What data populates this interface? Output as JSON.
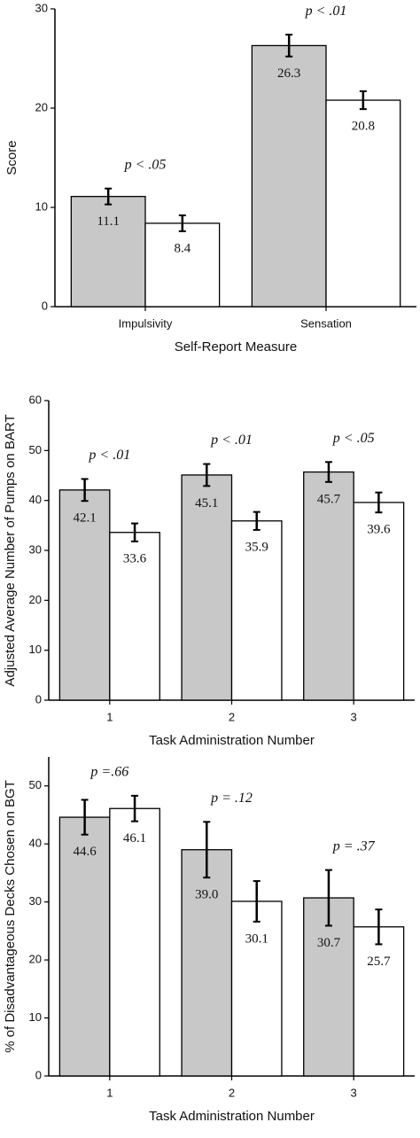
{
  "chart_data": [
    {
      "type": "bar",
      "x_label": "Self-Report Measure",
      "y_label": "Score",
      "categories": [
        "Impulsivity",
        "Sensation"
      ],
      "annotations": [
        "p < .05",
        "p < .01"
      ],
      "series": [
        {
          "color": "#c8c8c8",
          "values": [
            11.1,
            26.3
          ],
          "errors": [
            0.8,
            1.1
          ]
        },
        {
          "color": "#ffffff",
          "values": [
            8.4,
            20.8
          ],
          "errors": [
            0.8,
            0.9
          ]
        }
      ],
      "ylim": [
        0,
        30
      ],
      "yticks": [
        0,
        10,
        20,
        30
      ]
    },
    {
      "type": "bar",
      "x_label": "Task Administration Number",
      "y_label": "Adjusted Average Number of Pumps on BART",
      "categories": [
        "1",
        "2",
        "3"
      ],
      "annotations": [
        "p < .01",
        "p < .01",
        "p < .05"
      ],
      "series": [
        {
          "color": "#c8c8c8",
          "values": [
            42.1,
            45.1,
            45.7
          ],
          "errors": [
            2.2,
            2.2,
            2.0
          ]
        },
        {
          "color": "#ffffff",
          "values": [
            33.6,
            35.9,
            39.6
          ],
          "errors": [
            1.8,
            1.8,
            2.0
          ]
        }
      ],
      "ylim": [
        0,
        60
      ],
      "yticks": [
        0,
        10,
        20,
        30,
        40,
        50,
        60
      ]
    },
    {
      "type": "bar",
      "x_label": "Task Administration Number",
      "y_label": "% of Disadvantageous Decks Chosen on BGT",
      "categories": [
        "1",
        "2",
        "3"
      ],
      "annotations": [
        "p =.66",
        "p = .12",
        "p = .37"
      ],
      "series": [
        {
          "color": "#c8c8c8",
          "values": [
            44.6,
            39,
            30.7
          ],
          "value_labels": [
            "44.6",
            "39.0",
            "30.7"
          ],
          "errors": [
            3.0,
            4.8,
            4.8
          ]
        },
        {
          "color": "#ffffff",
          "values": [
            46.1,
            30.1,
            25.7
          ],
          "errors": [
            2.2,
            3.5,
            3.0
          ]
        }
      ],
      "ylim": [
        0,
        55
      ],
      "yticks": [
        0,
        10,
        20,
        30,
        40,
        50
      ]
    }
  ]
}
